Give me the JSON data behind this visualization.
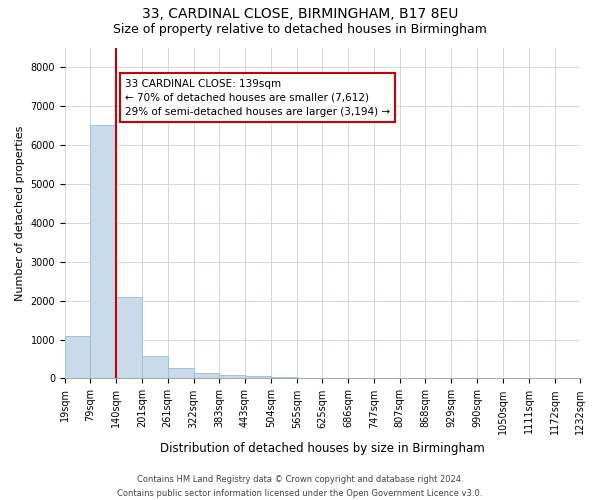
{
  "title1": "33, CARDINAL CLOSE, BIRMINGHAM, B17 8EU",
  "title2": "Size of property relative to detached houses in Birmingham",
  "xlabel": "Distribution of detached houses by size in Birmingham",
  "ylabel": "Number of detached properties",
  "footer1": "Contains HM Land Registry data © Crown copyright and database right 2024.",
  "footer2": "Contains public sector information licensed under the Open Government Licence v3.0.",
  "annotation_line1": "33 CARDINAL CLOSE: 139sqm",
  "annotation_line2": "← 70% of detached houses are smaller (7,612)",
  "annotation_line3": "29% of semi-detached houses are larger (3,194) →",
  "property_size_sqm": 139,
  "bar_color": "#c9daea",
  "bar_edge_color": "#9bbdd4",
  "line_color": "#cc0000",
  "annotation_box_edge_color": "#cc0000",
  "ylim": [
    0,
    8500
  ],
  "yticks": [
    0,
    1000,
    2000,
    3000,
    4000,
    5000,
    6000,
    7000,
    8000
  ],
  "bins": [
    19,
    79,
    140,
    201,
    261,
    322,
    383,
    443,
    504,
    565,
    625,
    686,
    747,
    807,
    868,
    929,
    990,
    1050,
    1111,
    1172,
    1232
  ],
  "counts": [
    1100,
    6500,
    2100,
    580,
    270,
    140,
    90,
    50,
    30,
    15,
    10,
    5,
    0,
    0,
    0,
    0,
    0,
    0,
    0,
    0
  ],
  "grid_color": "#d0d8e4",
  "title1_fontsize": 10,
  "title2_fontsize": 9,
  "xlabel_fontsize": 8.5,
  "ylabel_fontsize": 8,
  "tick_fontsize": 7,
  "footer_fontsize": 6,
  "annotation_fontsize": 7.5
}
